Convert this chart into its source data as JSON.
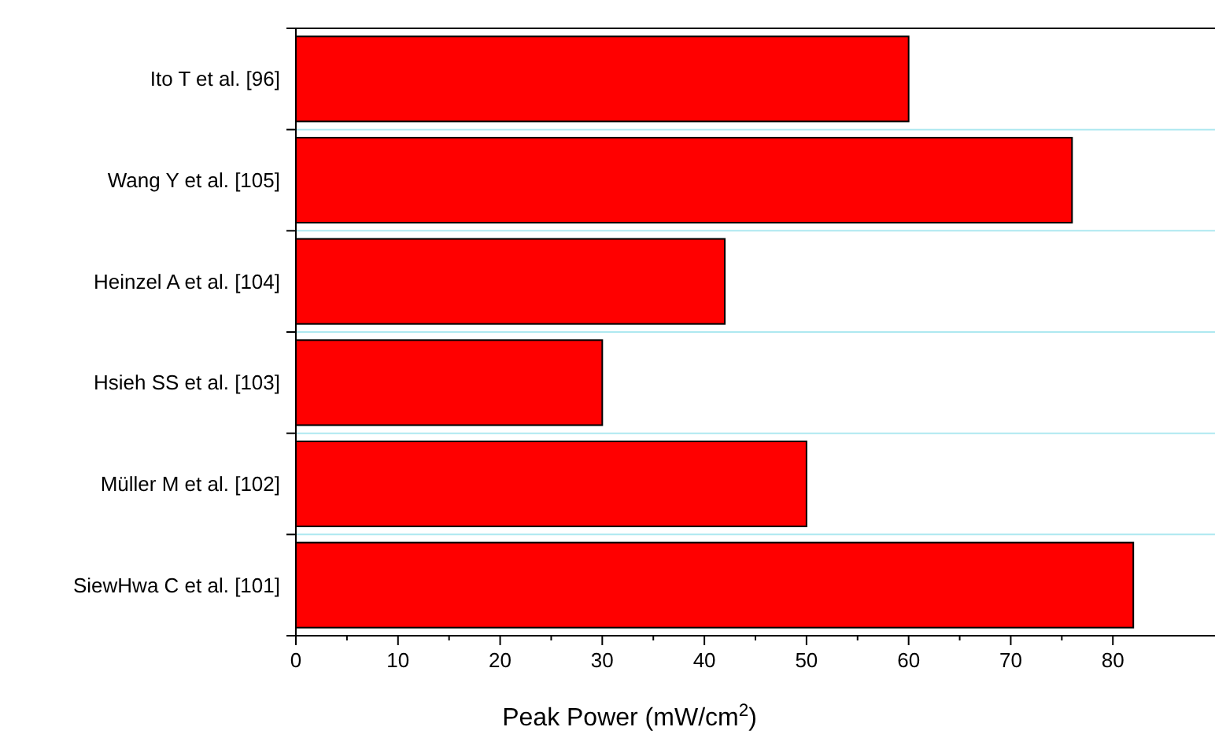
{
  "chart_data": {
    "type": "bar",
    "orientation": "horizontal",
    "xlabel": "Peak Power (mW/cm$^{2}$)",
    "categories": [
      "Ito T et al. [96]",
      "Wang Y et al. [105]",
      "Heinzel A et al. [104]",
      "Hsieh SS et al. [103]",
      "Müller M et al. [102]",
      "SiewHwa C et al. [101]"
    ],
    "values": [
      60,
      76,
      42,
      30,
      50,
      82
    ],
    "color": "#ff0000",
    "xlim": [
      0,
      90
    ],
    "xticks": [
      0,
      10,
      20,
      30,
      40,
      50,
      60,
      70,
      80
    ],
    "grid": "y"
  }
}
